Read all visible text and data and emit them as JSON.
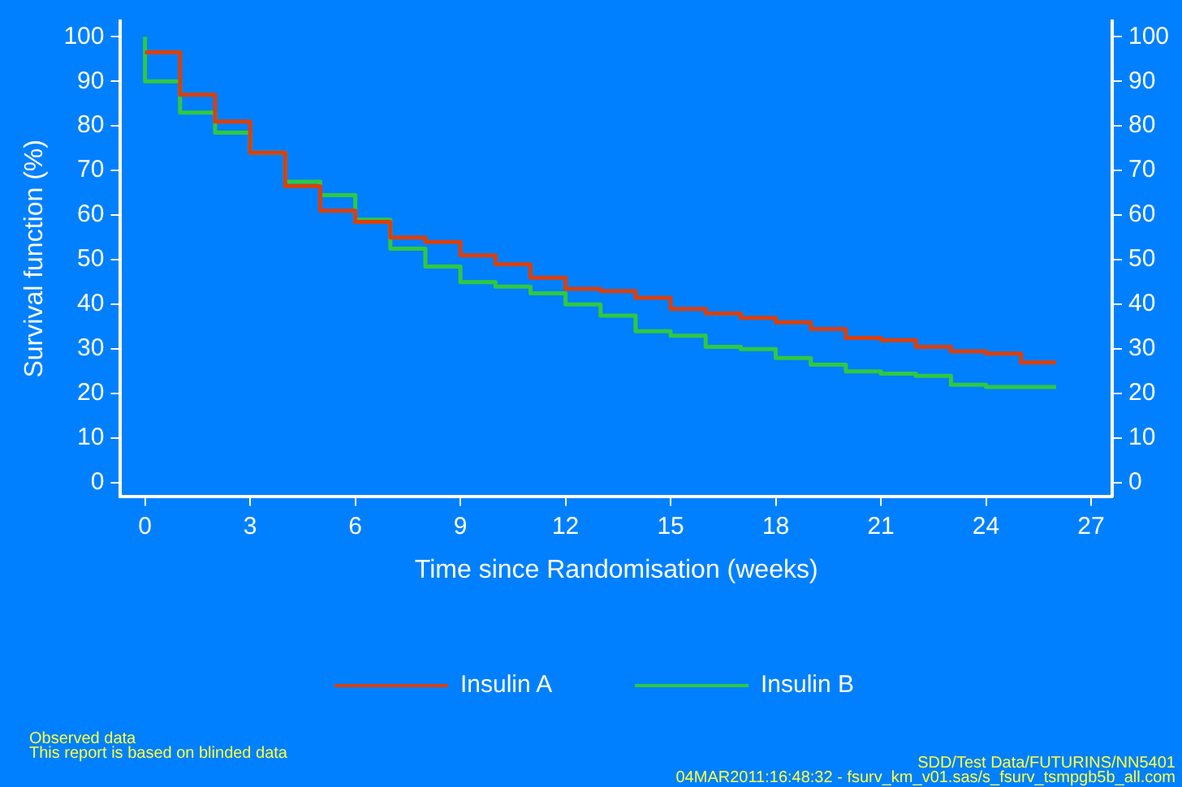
{
  "chart_data": {
    "type": "step",
    "xlabel": "Time since Randomisation (weeks)",
    "ylabel": "Survival function (%)",
    "xlim": [
      -0.7,
      27.6
    ],
    "xticks": [
      0,
      3,
      6,
      9,
      12,
      15,
      18,
      21,
      24,
      27
    ],
    "ylim": [
      -3,
      103.5
    ],
    "yticks": [
      0,
      10,
      20,
      30,
      40,
      50,
      60,
      70,
      80,
      90,
      100
    ],
    "y2lim": [
      -3,
      103.5
    ],
    "y2ticks": [
      0,
      10,
      20,
      30,
      40,
      50,
      60,
      70,
      80,
      90,
      100
    ],
    "grid": false,
    "legend": "bottom",
    "marker": "none",
    "line_style": "solid",
    "series": [
      {
        "name": "Insulin A",
        "color": "#d84010",
        "x": [
          0,
          1,
          2,
          3,
          4,
          5,
          6,
          7,
          8,
          9,
          10,
          11,
          12,
          13,
          14,
          15,
          16,
          17,
          18,
          19,
          20,
          21,
          22,
          23,
          24,
          25,
          26
        ],
        "values": [
          96.5,
          87,
          81,
          74,
          66.5,
          61,
          58.5,
          55,
          54,
          51,
          49,
          46,
          43.5,
          43,
          41.5,
          39,
          38,
          37,
          36,
          34.5,
          32.5,
          32,
          30.5,
          29.5,
          29,
          27,
          27
        ]
      },
      {
        "name": "Insulin B",
        "color": "#30c840",
        "x": [
          0,
          0,
          1,
          2,
          3,
          4,
          5,
          6,
          7,
          8,
          9,
          10,
          11,
          12,
          13,
          14,
          15,
          16,
          17,
          18,
          19,
          20,
          21,
          22,
          23,
          24,
          25,
          26
        ],
        "values": [
          100,
          90,
          83,
          78.5,
          74,
          67.5,
          64.5,
          59,
          52.5,
          48.5,
          45,
          44,
          42.5,
          40,
          37.5,
          34,
          33,
          30.5,
          30,
          28,
          26.5,
          25,
          24.5,
          24,
          22,
          21.5,
          21.5,
          21.5
        ]
      }
    ],
    "annotations": [
      "Observed data",
      "This report is based on blinded data",
      "SDD/Test Data/FUTURINS/NN5401",
      "04MAR2011:16:48:32 - fsurv_km_v01.sas/s_fsurv_tsmpgb5b_all.com"
    ]
  }
}
